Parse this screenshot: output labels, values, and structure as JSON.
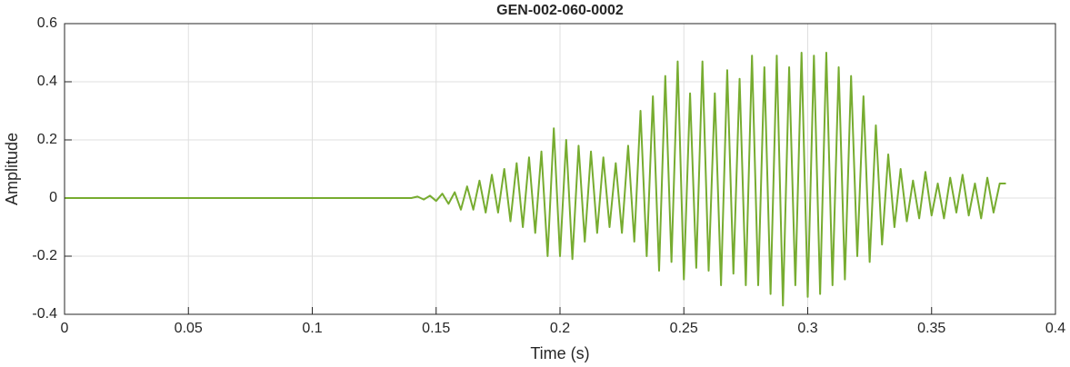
{
  "chart_data": {
    "type": "line",
    "title": "GEN-002-060-0002",
    "xlabel": "Time (s)",
    "ylabel": "Amplitude",
    "x": [
      0,
      0.14,
      0.1425,
      0.145,
      0.1475,
      0.15,
      0.1525,
      0.155,
      0.1575,
      0.16,
      0.1625,
      0.165,
      0.1675,
      0.17,
      0.1725,
      0.175,
      0.1775,
      0.18,
      0.1825,
      0.185,
      0.1875,
      0.19,
      0.1925,
      0.195,
      0.1975,
      0.2,
      0.2025,
      0.205,
      0.2075,
      0.21,
      0.2125,
      0.215,
      0.2175,
      0.22,
      0.2225,
      0.225,
      0.2275,
      0.23,
      0.2325,
      0.235,
      0.2375,
      0.24,
      0.2425,
      0.245,
      0.2475,
      0.25,
      0.2525,
      0.255,
      0.2575,
      0.26,
      0.2625,
      0.265,
      0.2675,
      0.27,
      0.2725,
      0.275,
      0.2775,
      0.28,
      0.2825,
      0.285,
      0.2875,
      0.29,
      0.2925,
      0.295,
      0.2975,
      0.3,
      0.3025,
      0.305,
      0.3075,
      0.31,
      0.3125,
      0.315,
      0.3175,
      0.32,
      0.3225,
      0.325,
      0.3275,
      0.33,
      0.3325,
      0.335,
      0.3375,
      0.34,
      0.3425,
      0.345,
      0.3475,
      0.35,
      0.3525,
      0.355,
      0.3575,
      0.36,
      0.3625,
      0.365,
      0.3675,
      0.37,
      0.3725,
      0.375,
      0.3775,
      0.38
    ],
    "values": [
      0,
      0,
      0.005,
      -0.005,
      0.008,
      -0.01,
      0.015,
      -0.02,
      0.02,
      -0.04,
      0.04,
      -0.04,
      0.06,
      -0.05,
      0.08,
      -0.05,
      0.1,
      -0.08,
      0.12,
      -0.1,
      0.14,
      -0.12,
      0.16,
      -0.2,
      0.24,
      -0.2,
      0.2,
      -0.21,
      0.18,
      -0.15,
      0.16,
      -0.12,
      0.14,
      -0.1,
      0.12,
      -0.12,
      0.18,
      -0.15,
      0.3,
      -0.2,
      0.35,
      -0.25,
      0.42,
      -0.22,
      0.47,
      -0.28,
      0.36,
      -0.24,
      0.47,
      -0.25,
      0.36,
      -0.3,
      0.44,
      -0.26,
      0.41,
      -0.3,
      0.49,
      -0.3,
      0.45,
      -0.33,
      0.49,
      -0.37,
      0.45,
      -0.3,
      0.5,
      -0.34,
      0.49,
      -0.33,
      0.5,
      -0.3,
      0.45,
      -0.28,
      0.42,
      -0.2,
      0.35,
      -0.22,
      0.25,
      -0.16,
      0.15,
      -0.1,
      0.1,
      -0.08,
      0.06,
      -0.07,
      0.09,
      -0.06,
      0.05,
      -0.07,
      0.07,
      -0.05,
      0.08,
      -0.06,
      0.05,
      -0.07,
      0.07,
      -0.05,
      0.05,
      0.05
    ],
    "color": "#77ac30",
    "xlim": [
      0,
      0.4
    ],
    "xticks": [
      0,
      0.05,
      0.1,
      0.15,
      0.2,
      0.25,
      0.3,
      0.35,
      0.4
    ],
    "ylim": [
      -0.4,
      0.6
    ],
    "yticks": [
      -0.4,
      -0.2,
      0,
      0.2,
      0.4,
      0.6
    ],
    "grid": true
  }
}
